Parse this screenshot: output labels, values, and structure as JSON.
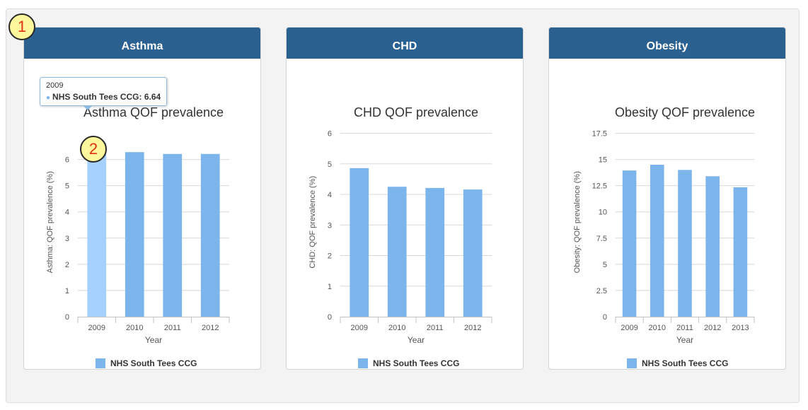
{
  "annotations": [
    "1",
    "2"
  ],
  "tooltip": {
    "category": "2009",
    "series": "NHS South Tees CCG",
    "value": "6.64",
    "text": "NHS South Tees CCG: 6.64"
  },
  "colors": {
    "header": "#2b6190",
    "bar": "#7cb5ec",
    "bar_hover": "#a6d1ff"
  },
  "panels": [
    {
      "header": "Asthma"
    },
    {
      "header": "CHD"
    },
    {
      "header": "Obesity"
    }
  ],
  "chart_data": [
    {
      "type": "bar",
      "title": "Asthma QOF prevalence",
      "xlabel": "Year",
      "ylabel": "Asthma: QOF prevalence (%)",
      "categories": [
        "2009",
        "2010",
        "2011",
        "2012"
      ],
      "series": [
        {
          "name": "NHS South Tees CCG",
          "values": [
            6.64,
            6.28,
            6.21,
            6.21
          ]
        }
      ],
      "ylim": [
        0,
        7
      ],
      "yticks": [
        0,
        1,
        2,
        3,
        4,
        5,
        6
      ],
      "ytick_labels": [
        "0",
        "1",
        "2",
        "3",
        "4",
        "5",
        "6"
      ],
      "grid": true,
      "legend": "bottom",
      "highlighted": 0
    },
    {
      "type": "bar",
      "title": "CHD QOF prevalence",
      "xlabel": "Year",
      "ylabel": "CHD: QOF prevalence (%)",
      "categories": [
        "2009",
        "2010",
        "2011",
        "2012"
      ],
      "series": [
        {
          "name": "NHS South Tees CCG",
          "values": [
            4.86,
            4.25,
            4.21,
            4.16
          ]
        }
      ],
      "ylim": [
        0,
        6
      ],
      "yticks": [
        0,
        1,
        2,
        3,
        4,
        5,
        6
      ],
      "ytick_labels": [
        "0",
        "1",
        "2",
        "3",
        "4",
        "5",
        "6"
      ],
      "grid": true,
      "legend": "bottom",
      "highlighted": -1
    },
    {
      "type": "bar",
      "title": "Obesity QOF prevalence",
      "xlabel": "Year",
      "ylabel": "Obesity: QOF prevalence (%)",
      "categories": [
        "2009",
        "2010",
        "2011",
        "2012",
        "2013"
      ],
      "series": [
        {
          "name": "NHS South Tees CCG",
          "values": [
            13.95,
            14.5,
            14.0,
            13.4,
            12.35
          ]
        }
      ],
      "ylim": [
        0,
        17.5
      ],
      "yticks": [
        0,
        2.5,
        5,
        7.5,
        10,
        12.5,
        15,
        17.5
      ],
      "ytick_labels": [
        "0",
        "2.5",
        "5",
        "7.5",
        "10",
        "12.5",
        "15",
        "17.5"
      ],
      "grid": true,
      "legend": "bottom",
      "highlighted": -1
    }
  ]
}
